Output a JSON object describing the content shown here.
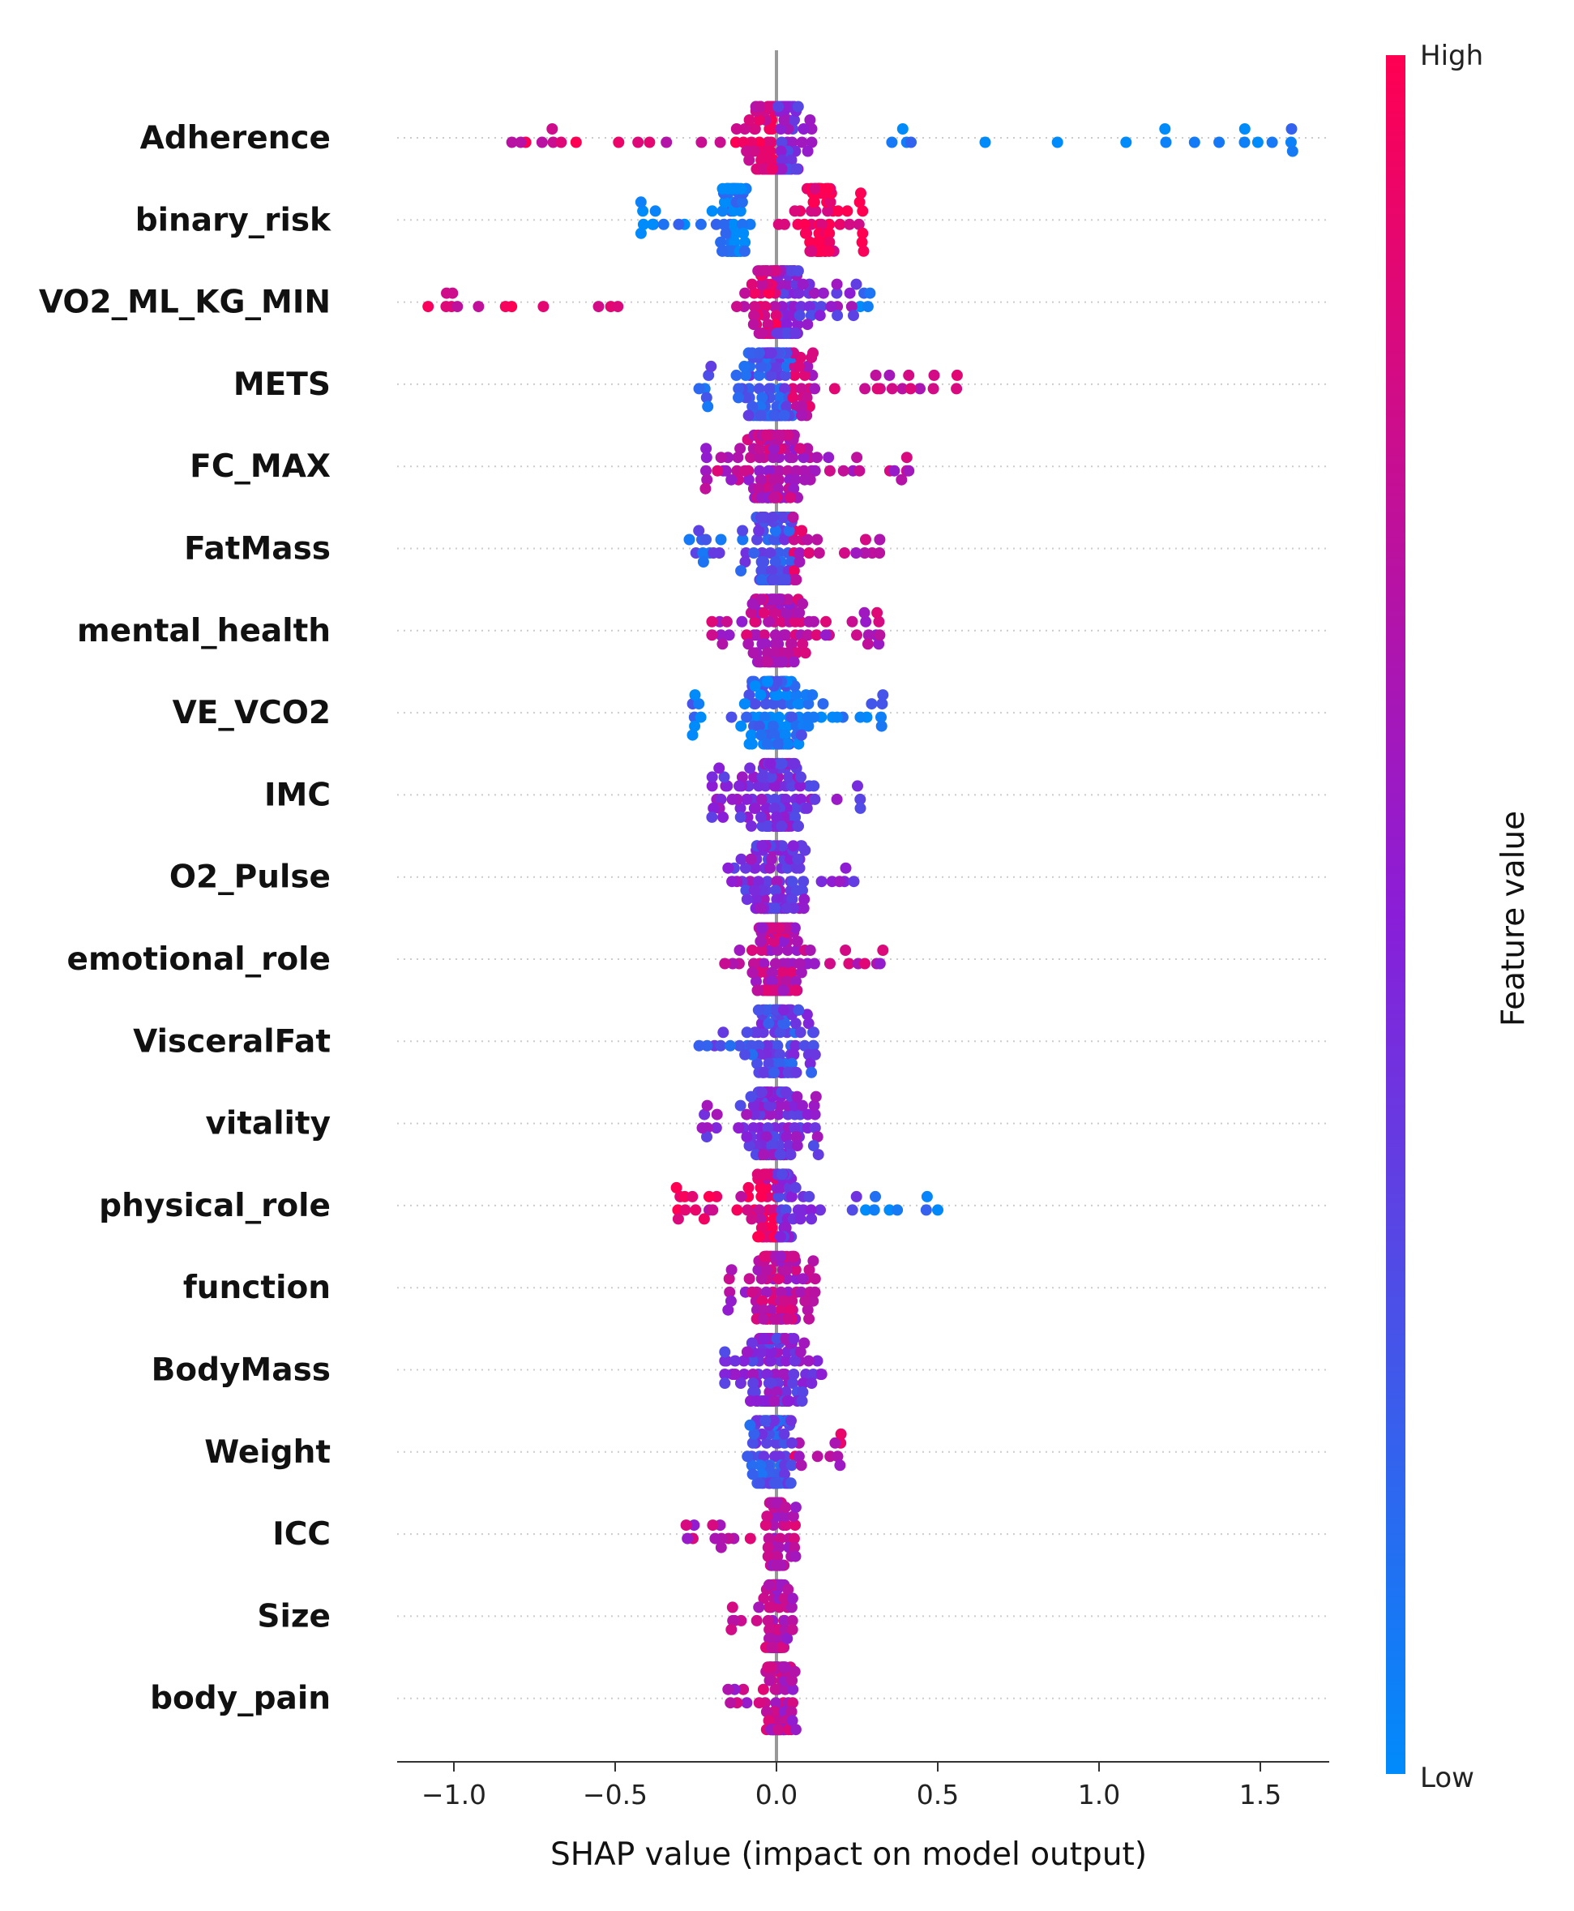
{
  "chart_data": {
    "type": "scatter",
    "subtype": "shap-beeswarm",
    "xlabel": "SHAP value (impact on model output)",
    "xlim": [
      -1.2,
      1.72
    ],
    "xticks": [
      -1.0,
      -0.5,
      0.0,
      0.5,
      1.0,
      1.5
    ],
    "xtick_labels": [
      "−1.0",
      "−0.5",
      "0.0",
      "0.5",
      "1.0",
      "1.5"
    ],
    "colorbar": {
      "label": "Feature value",
      "high_label": "High",
      "low_label": "Low",
      "high_color": "#ff0052",
      "low_color": "#008bfb"
    },
    "features": [
      {
        "name": "Adherence",
        "range": [
          -0.82,
          1.6
        ],
        "trend": "neg",
        "density": 130
      },
      {
        "name": "binary_risk",
        "range": [
          -0.42,
          0.27
        ],
        "trend": "split",
        "density": 150
      },
      {
        "name": "VO2_ML_KG_MIN",
        "range": [
          -1.08,
          0.29
        ],
        "trend": "neg",
        "density": 130
      },
      {
        "name": "METS",
        "range": [
          -0.24,
          0.56
        ],
        "trend": "pos",
        "density": 120
      },
      {
        "name": "FC_MAX",
        "range": [
          -0.22,
          0.41
        ],
        "trend": "mixed_high",
        "density": 100
      },
      {
        "name": "FatMass",
        "range": [
          -0.27,
          0.32
        ],
        "trend": "pos",
        "density": 100
      },
      {
        "name": "mental_health",
        "range": [
          -0.2,
          0.32
        ],
        "trend": "mixed_high",
        "density": 100
      },
      {
        "name": "VE_VCO2",
        "range": [
          -0.26,
          0.33
        ],
        "trend": "low",
        "density": 100
      },
      {
        "name": "IMC",
        "range": [
          -0.2,
          0.26
        ],
        "trend": "mixed",
        "density": 100
      },
      {
        "name": "O2_Pulse",
        "range": [
          -0.15,
          0.24
        ],
        "trend": "mixed",
        "density": 90
      },
      {
        "name": "emotional_role",
        "range": [
          -0.16,
          0.33
        ],
        "trend": "mixed_high",
        "density": 90
      },
      {
        "name": "VisceralFat",
        "range": [
          -0.24,
          0.12
        ],
        "trend": "mixed_low",
        "density": 90
      },
      {
        "name": "vitality",
        "range": [
          -0.23,
          0.13
        ],
        "trend": "mixed",
        "density": 90
      },
      {
        "name": "physical_role",
        "range": [
          -0.31,
          0.5
        ],
        "trend": "neg",
        "density": 100
      },
      {
        "name": "function",
        "range": [
          -0.15,
          0.12
        ],
        "trend": "mixed_high",
        "density": 90
      },
      {
        "name": "BodyMass",
        "range": [
          -0.16,
          0.14
        ],
        "trend": "mixed",
        "density": 90
      },
      {
        "name": "Weight",
        "range": [
          -0.09,
          0.2
        ],
        "trend": "pos",
        "density": 80
      },
      {
        "name": "ICC",
        "range": [
          -0.28,
          0.06
        ],
        "trend": "mixed_high",
        "density": 80
      },
      {
        "name": "Size",
        "range": [
          -0.14,
          0.05
        ],
        "trend": "mixed_high",
        "density": 70
      },
      {
        "name": "body_pain",
        "range": [
          -0.15,
          0.06
        ],
        "trend": "mixed_high",
        "density": 70
      }
    ]
  }
}
